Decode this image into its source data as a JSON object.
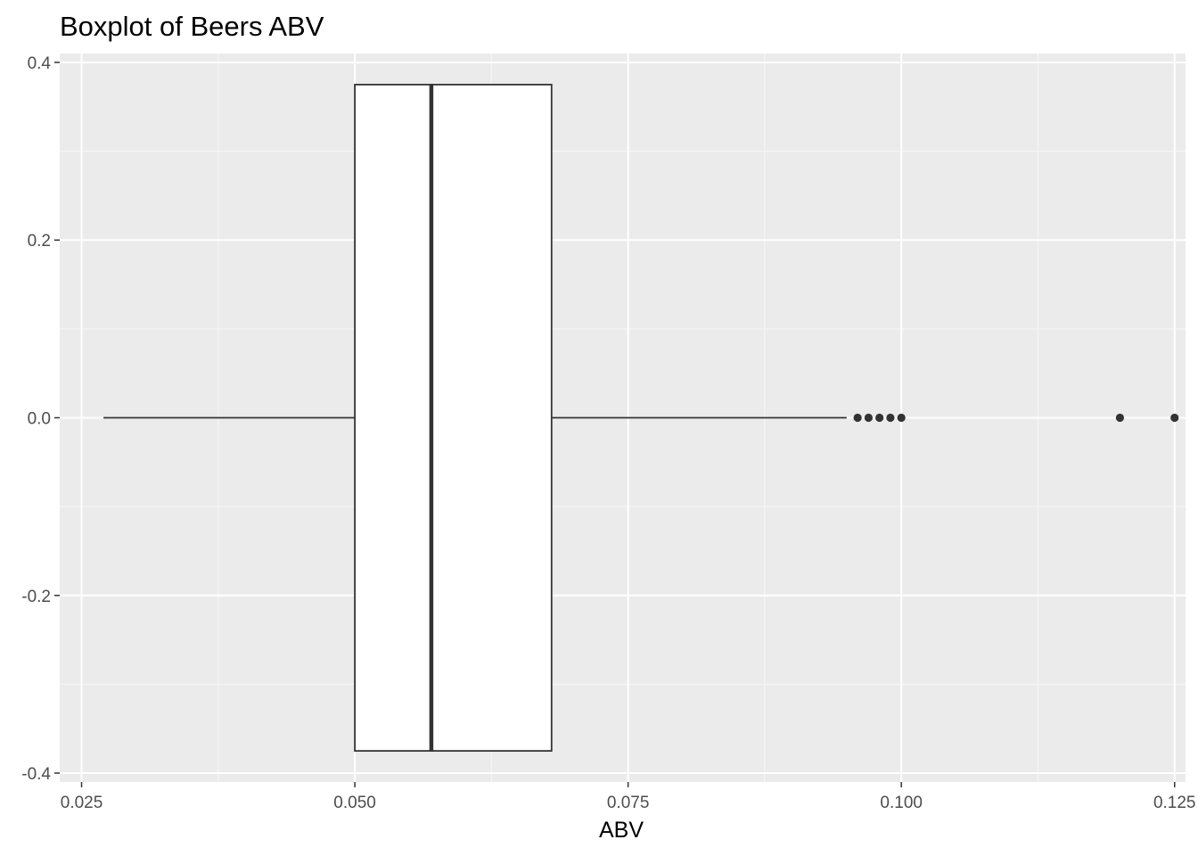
{
  "chart_data": {
    "type": "boxplot",
    "orientation": "horizontal",
    "title": "Boxplot of Beers ABV",
    "xlabel": "ABV",
    "ylabel": "",
    "xlim": [
      0.023,
      0.126
    ],
    "ylim": [
      -0.41,
      0.41
    ],
    "x_ticks": [
      {
        "value": 0.025,
        "label": "0.025"
      },
      {
        "value": 0.05,
        "label": "0.050"
      },
      {
        "value": 0.075,
        "label": "0.075"
      },
      {
        "value": 0.1,
        "label": "0.100"
      },
      {
        "value": 0.125,
        "label": "0.125"
      }
    ],
    "y_ticks": [
      {
        "value": 0.4,
        "label": "0.4"
      },
      {
        "value": 0.2,
        "label": "0.2"
      },
      {
        "value": 0.0,
        "label": "0.0"
      },
      {
        "value": -0.2,
        "label": "-0.2"
      },
      {
        "value": -0.4,
        "label": "-0.4"
      }
    ],
    "box": {
      "whisker_low": 0.027,
      "q1": 0.05,
      "median": 0.057,
      "q3": 0.068,
      "whisker_high": 0.095,
      "y_center": 0.0,
      "half_width": 0.375
    },
    "outliers": [
      0.096,
      0.097,
      0.098,
      0.099,
      0.1,
      0.12,
      0.125
    ],
    "grid": true,
    "colors": {
      "panel_background": "#ebebeb",
      "grid_major": "#ffffff",
      "grid_minor": "#f5f5f5",
      "box_fill": "#ffffff",
      "box_stroke": "#333333",
      "tick_text": "#4d4d4d",
      "title_text": "#000000"
    }
  }
}
